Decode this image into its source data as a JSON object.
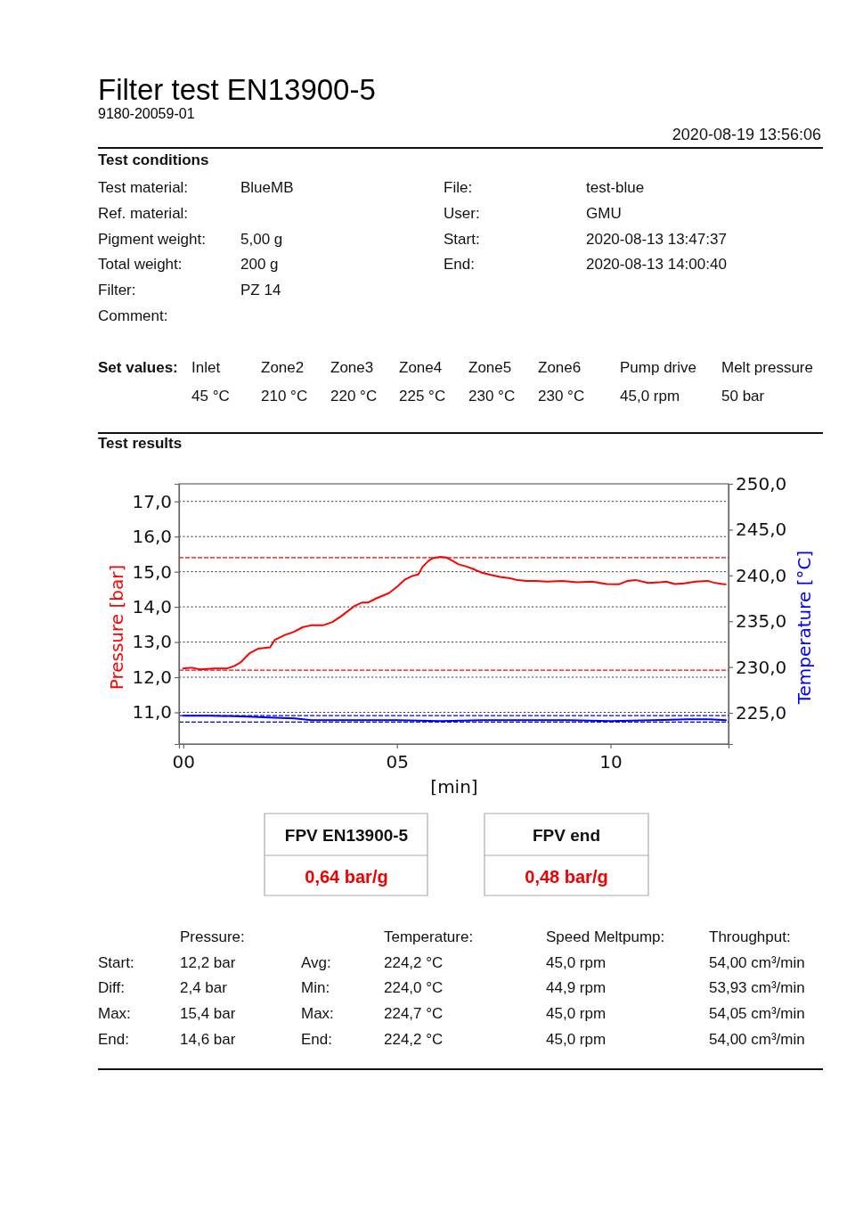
{
  "chart_data": {
    "type": "line",
    "title": "Filter test EN13900-5",
    "subtitle": "9180-20059-01",
    "xlabel": "[min]",
    "ylabel": "Pressure [bar]",
    "y2label": "Temperature [°C]",
    "xlim": [
      -0.1,
      12.76
    ],
    "xticks": [
      {
        "value": 0,
        "label": "00"
      },
      {
        "value": 5,
        "label": "05"
      },
      {
        "value": 10,
        "label": "10"
      }
    ],
    "ylim": [
      10.1,
      17.5
    ],
    "yticks": [
      {
        "value": 11,
        "label": "11,0"
      },
      {
        "value": 12,
        "label": "12,0"
      },
      {
        "value": 13,
        "label": "13,0"
      },
      {
        "value": 14,
        "label": "14,0"
      },
      {
        "value": 15,
        "label": "15,0"
      },
      {
        "value": 16,
        "label": "16,0"
      },
      {
        "value": 17,
        "label": "17,0"
      }
    ],
    "y2lim": [
      221.6,
      250
    ],
    "y2ticks": [
      {
        "value": 225,
        "label": "225,0"
      },
      {
        "value": 230,
        "label": "230,0"
      },
      {
        "value": 235,
        "label": "235,0"
      },
      {
        "value": 240,
        "label": "240,0"
      },
      {
        "value": 245,
        "label": "245,0"
      },
      {
        "value": 250,
        "label": "250,0"
      }
    ],
    "grid": "y",
    "series": [
      {
        "color": "#ff0000",
        "x": [
          0,
          0.19,
          0.4,
          0.71,
          1.03,
          1.2,
          1.34,
          1.55,
          1.75,
          2.03,
          2.14,
          2.38,
          2.59,
          2.79,
          3.0,
          3.28,
          3.49,
          3.7,
          3.83,
          4.01,
          4.18,
          4.32,
          4.53,
          4.81,
          5.01,
          5.19,
          5.36,
          5.5,
          5.6,
          5.74,
          5.85,
          6.02,
          6.16,
          6.3,
          6.44,
          6.65,
          6.78,
          6.99,
          7.2,
          7.41,
          7.62,
          7.83,
          8.03,
          8.24,
          8.52,
          8.87,
          9.22,
          9.56,
          9.91,
          10.19,
          10.4,
          10.6,
          10.88,
          11.16,
          11.3,
          11.51,
          11.72,
          11.99,
          12.27,
          12.41,
          12.62,
          12.69
        ],
        "values": [
          12.25,
          12.27,
          12.22,
          12.25,
          12.25,
          12.32,
          12.42,
          12.68,
          12.81,
          12.85,
          13.06,
          13.2,
          13.29,
          13.42,
          13.48,
          13.48,
          13.57,
          13.74,
          13.86,
          14.03,
          14.12,
          14.12,
          14.25,
          14.39,
          14.58,
          14.78,
          14.88,
          14.92,
          15.14,
          15.31,
          15.39,
          15.42,
          15.4,
          15.31,
          15.21,
          15.14,
          15.08,
          14.97,
          14.91,
          14.85,
          14.82,
          14.76,
          14.74,
          14.74,
          14.72,
          14.74,
          14.7,
          14.72,
          14.65,
          14.64,
          14.74,
          14.76,
          14.68,
          14.7,
          14.72,
          14.65,
          14.67,
          14.72,
          14.74,
          14.69,
          14.65,
          14.64
        ]
      },
      {
        "color": "#0000ff",
        "axis": "y2",
        "x": [
          0,
          0.6,
          1.5,
          2.0,
          2.6,
          3.0,
          4.0,
          5.0,
          6.0,
          7.0,
          8.0,
          9.0,
          10.0,
          11.0,
          11.8,
          12.3,
          12.7
        ],
        "values": [
          224.7,
          224.7,
          224.6,
          224.5,
          224.4,
          224.2,
          224.2,
          224.2,
          224.1,
          224.2,
          224.2,
          224.2,
          224.1,
          224.2,
          224.3,
          224.3,
          224.2
        ]
      }
    ],
    "ref_lines": [
      {
        "axis": "y",
        "value": 15.4,
        "color": "#ff0000",
        "line_style": "dashed"
      },
      {
        "axis": "y",
        "value": 12.2,
        "color": "#ff0000",
        "line_style": "dashed"
      },
      {
        "axis": "y2",
        "value": 224.7,
        "color": "#0000ff",
        "line_style": "dashed"
      },
      {
        "axis": "y2",
        "value": 224.0,
        "color": "#0000ff",
        "line_style": "dashed"
      }
    ],
    "annotations": [
      "2020-08-19 13:56:06",
      "Test conditions",
      "Test material:",
      "BlueMB",
      "Ref. material:",
      "Pigment weight:",
      "5,00 g",
      "Total weight:",
      "200 g",
      "Filter:",
      "PZ 14",
      "Comment:",
      "File:",
      "test-blue",
      "User:",
      "GMU",
      "Start:",
      "2020-08-13 13:47:37",
      "End:",
      "2020-08-13 14:00:40",
      "Set values:",
      "Inlet",
      "Zone2",
      "Zone3",
      "Zone4",
      "Zone5",
      "Zone6",
      "Pump drive",
      "Melt pressure",
      "45 °C",
      "210 °C",
      "220 °C",
      "225 °C",
      "230 °C",
      "230 °C",
      "45,0 rpm",
      "50 bar",
      "Test results",
      "FPV EN13900-5",
      "0,64 bar/g",
      "FPV end",
      "0,48 bar/g",
      "Pressure:",
      "Temperature:",
      "Speed Meltpump:",
      "Throughput:",
      "Start:",
      "12,2 bar",
      "Avg:",
      "224,2 °C",
      "45,0 rpm",
      "54,00 cm³/min",
      "Diff:",
      "2,4 bar",
      "Min:",
      "224,0 °C",
      "44,9 rpm",
      "53,93 cm³/min",
      "Max:",
      "15,4 bar",
      "Max:",
      "224,7 °C",
      "45,0 rpm",
      "54,05 cm³/min",
      "End:",
      "14,6 bar",
      "End:",
      "224,2 °C",
      "45,0 rpm",
      "54,00 cm³/min"
    ]
  }
}
